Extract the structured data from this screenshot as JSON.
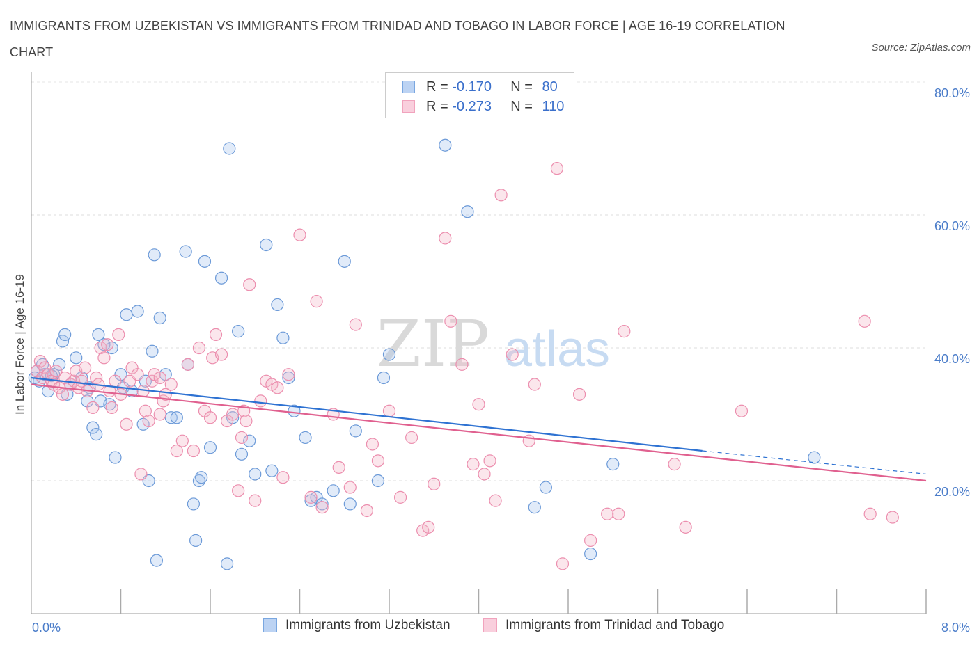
{
  "title": "IMMIGRANTS FROM UZBEKISTAN VS IMMIGRANTS FROM TRINIDAD AND TOBAGO IN LABOR FORCE | AGE 16-19 CORRELATION CHART",
  "source": "Source: ZipAtlas.com",
  "watermark": {
    "zip": "ZIP",
    "atlas": "atlas"
  },
  "legend": {
    "rows": [
      {
        "r_label": "R =",
        "r_value": "-0.170",
        "n_label": "N =",
        "n_value": "80",
        "color": "#7aa7e0"
      },
      {
        "r_label": "R =",
        "r_value": "-0.273",
        "n_label": "N =",
        "n_value": "110",
        "color": "#f1a3bd"
      }
    ]
  },
  "chart_data": {
    "type": "scatter",
    "title": "IMMIGRANTS FROM UZBEKISTAN VS IMMIGRANTS FROM TRINIDAD AND TOBAGO IN LABOR FORCE | AGE 16-19 CORRELATION CHART",
    "xlabel": "",
    "ylabel": "In Labor Force | Age 16-19",
    "xlim": [
      0,
      8
    ],
    "ylim": [
      0,
      80
    ],
    "x_tick_labels": [
      "0.0%",
      "8.0%"
    ],
    "y_tick_labels": [
      "20.0%",
      "40.0%",
      "60.0%",
      "80.0%"
    ],
    "y_ticks": [
      20,
      40,
      60,
      80
    ],
    "grid": true,
    "legend_position": "top-center",
    "series": [
      {
        "name": "Immigrants from Uzbekistan",
        "color": "#7aa7e0",
        "line_color": "#2e72d2",
        "trend": {
          "x": [
            0.0,
            6.0
          ],
          "y": [
            35.5,
            24.5
          ],
          "dashed_to": [
            8.0,
            21.0
          ]
        },
        "points": [
          [
            0.05,
            36.5
          ],
          [
            0.07,
            35.0
          ],
          [
            0.1,
            37.5
          ],
          [
            0.12,
            36.0
          ],
          [
            0.15,
            33.5
          ],
          [
            0.2,
            36.0
          ],
          [
            0.25,
            37.5
          ],
          [
            0.28,
            41.0
          ],
          [
            0.3,
            42.0
          ],
          [
            0.32,
            33.0
          ],
          [
            0.4,
            38.5
          ],
          [
            0.45,
            35.5
          ],
          [
            0.5,
            32.0
          ],
          [
            0.52,
            34.0
          ],
          [
            0.55,
            28.0
          ],
          [
            0.58,
            27.0
          ],
          [
            0.6,
            42.0
          ],
          [
            0.62,
            32.0
          ],
          [
            0.7,
            31.5
          ],
          [
            0.72,
            40.0
          ],
          [
            0.75,
            23.5
          ],
          [
            0.8,
            36.0
          ],
          [
            0.82,
            34.0
          ],
          [
            0.85,
            45.0
          ],
          [
            0.9,
            33.5
          ],
          [
            0.95,
            45.5
          ],
          [
            1.0,
            28.5
          ],
          [
            1.02,
            35.0
          ],
          [
            1.05,
            20.0
          ],
          [
            1.08,
            39.5
          ],
          [
            1.1,
            54.0
          ],
          [
            1.12,
            8.0
          ],
          [
            1.15,
            44.5
          ],
          [
            1.2,
            36.0
          ],
          [
            1.25,
            29.5
          ],
          [
            1.3,
            29.5
          ],
          [
            1.38,
            54.5
          ],
          [
            1.4,
            37.5
          ],
          [
            1.45,
            16.5
          ],
          [
            1.47,
            11.0
          ],
          [
            1.5,
            20.0
          ],
          [
            1.52,
            20.5
          ],
          [
            1.55,
            53.0
          ],
          [
            1.6,
            25.0
          ],
          [
            1.7,
            50.5
          ],
          [
            1.75,
            7.5
          ],
          [
            1.77,
            70.0
          ],
          [
            1.8,
            29.5
          ],
          [
            1.85,
            42.5
          ],
          [
            1.88,
            24.0
          ],
          [
            1.95,
            26.0
          ],
          [
            2.0,
            21.0
          ],
          [
            2.1,
            55.5
          ],
          [
            2.15,
            21.5
          ],
          [
            2.2,
            46.5
          ],
          [
            2.25,
            41.5
          ],
          [
            2.3,
            35.5
          ],
          [
            2.35,
            30.5
          ],
          [
            2.45,
            26.5
          ],
          [
            2.5,
            17.0
          ],
          [
            2.55,
            17.5
          ],
          [
            2.6,
            16.5
          ],
          [
            2.7,
            18.5
          ],
          [
            2.8,
            53.0
          ],
          [
            2.85,
            16.5
          ],
          [
            2.9,
            27.5
          ],
          [
            3.1,
            20.0
          ],
          [
            3.15,
            35.5
          ],
          [
            3.2,
            39.0
          ],
          [
            3.7,
            70.5
          ],
          [
            3.9,
            60.5
          ],
          [
            4.5,
            16.0
          ],
          [
            4.6,
            19.0
          ],
          [
            5.0,
            9.0
          ],
          [
            5.2,
            22.5
          ],
          [
            7.0,
            23.5
          ],
          [
            0.03,
            35.5
          ],
          [
            0.18,
            35.8
          ],
          [
            0.35,
            34.5
          ],
          [
            0.65,
            40.5
          ]
        ]
      },
      {
        "name": "Immigrants from Trinidad and Tobago",
        "color": "#f1a3bd",
        "line_color": "#e0608f",
        "trend": {
          "x": [
            0.0,
            8.0
          ],
          "y": [
            34.5,
            20.0
          ]
        },
        "points": [
          [
            0.05,
            36.5
          ],
          [
            0.08,
            38.0
          ],
          [
            0.1,
            35.5
          ],
          [
            0.12,
            37.0
          ],
          [
            0.15,
            36.0
          ],
          [
            0.18,
            35.0
          ],
          [
            0.2,
            34.5
          ],
          [
            0.22,
            36.5
          ],
          [
            0.25,
            34.0
          ],
          [
            0.28,
            33.0
          ],
          [
            0.3,
            35.5
          ],
          [
            0.35,
            34.5
          ],
          [
            0.38,
            35.0
          ],
          [
            0.4,
            36.5
          ],
          [
            0.42,
            34.0
          ],
          [
            0.45,
            35.0
          ],
          [
            0.48,
            37.0
          ],
          [
            0.5,
            33.5
          ],
          [
            0.55,
            31.0
          ],
          [
            0.58,
            35.5
          ],
          [
            0.6,
            34.5
          ],
          [
            0.62,
            40.0
          ],
          [
            0.65,
            38.5
          ],
          [
            0.68,
            40.5
          ],
          [
            0.7,
            33.5
          ],
          [
            0.72,
            31.0
          ],
          [
            0.75,
            35.0
          ],
          [
            0.78,
            42.0
          ],
          [
            0.8,
            33.0
          ],
          [
            0.85,
            28.5
          ],
          [
            0.88,
            35.0
          ],
          [
            0.9,
            37.0
          ],
          [
            0.95,
            36.0
          ],
          [
            0.98,
            21.0
          ],
          [
            1.0,
            33.5
          ],
          [
            1.02,
            30.5
          ],
          [
            1.05,
            29.0
          ],
          [
            1.08,
            35.0
          ],
          [
            1.1,
            36.0
          ],
          [
            1.15,
            35.5
          ],
          [
            1.18,
            32.0
          ],
          [
            1.2,
            33.0
          ],
          [
            1.25,
            34.5
          ],
          [
            1.3,
            24.5
          ],
          [
            1.35,
            26.0
          ],
          [
            1.4,
            37.5
          ],
          [
            1.45,
            24.5
          ],
          [
            1.5,
            40.0
          ],
          [
            1.55,
            30.5
          ],
          [
            1.6,
            29.5
          ],
          [
            1.62,
            38.5
          ],
          [
            1.65,
            42.0
          ],
          [
            1.7,
            39.0
          ],
          [
            1.75,
            29.0
          ],
          [
            1.8,
            30.0
          ],
          [
            1.85,
            18.5
          ],
          [
            1.88,
            26.5
          ],
          [
            1.9,
            30.5
          ],
          [
            1.92,
            29.0
          ],
          [
            1.95,
            49.5
          ],
          [
            2.0,
            17.0
          ],
          [
            2.05,
            32.0
          ],
          [
            2.1,
            35.0
          ],
          [
            2.15,
            34.5
          ],
          [
            2.2,
            34.0
          ],
          [
            2.25,
            20.5
          ],
          [
            2.3,
            36.0
          ],
          [
            2.4,
            57.0
          ],
          [
            2.5,
            17.5
          ],
          [
            2.55,
            47.0
          ],
          [
            2.6,
            16.0
          ],
          [
            2.7,
            30.0
          ],
          [
            2.75,
            22.0
          ],
          [
            2.85,
            19.0
          ],
          [
            2.9,
            43.5
          ],
          [
            3.0,
            15.5
          ],
          [
            3.05,
            25.5
          ],
          [
            3.1,
            23.0
          ],
          [
            3.2,
            30.5
          ],
          [
            3.3,
            17.5
          ],
          [
            3.4,
            26.5
          ],
          [
            3.5,
            12.5
          ],
          [
            3.55,
            13.0
          ],
          [
            3.6,
            19.5
          ],
          [
            3.7,
            56.5
          ],
          [
            3.75,
            44.0
          ],
          [
            3.85,
            37.5
          ],
          [
            3.95,
            22.5
          ],
          [
            4.0,
            31.5
          ],
          [
            4.05,
            21.0
          ],
          [
            4.1,
            23.0
          ],
          [
            4.15,
            17.0
          ],
          [
            4.2,
            63.0
          ],
          [
            4.3,
            39.0
          ],
          [
            4.45,
            26.0
          ],
          [
            4.5,
            34.5
          ],
          [
            4.7,
            67.0
          ],
          [
            4.75,
            7.5
          ],
          [
            4.9,
            33.0
          ],
          [
            5.0,
            11.0
          ],
          [
            5.15,
            15.0
          ],
          [
            5.25,
            15.0
          ],
          [
            5.3,
            42.5
          ],
          [
            5.75,
            22.5
          ],
          [
            5.85,
            13.0
          ],
          [
            6.35,
            30.5
          ],
          [
            7.45,
            44.0
          ],
          [
            7.5,
            15.0
          ],
          [
            7.7,
            14.5
          ],
          [
            1.15,
            30.0
          ]
        ]
      }
    ]
  },
  "bottom_legend": [
    {
      "label": "Immigrants from Uzbekistan",
      "color": "#7aa7e0"
    },
    {
      "label": "Immigrants from Trinidad and Tobago",
      "color": "#f1a3bd"
    }
  ]
}
